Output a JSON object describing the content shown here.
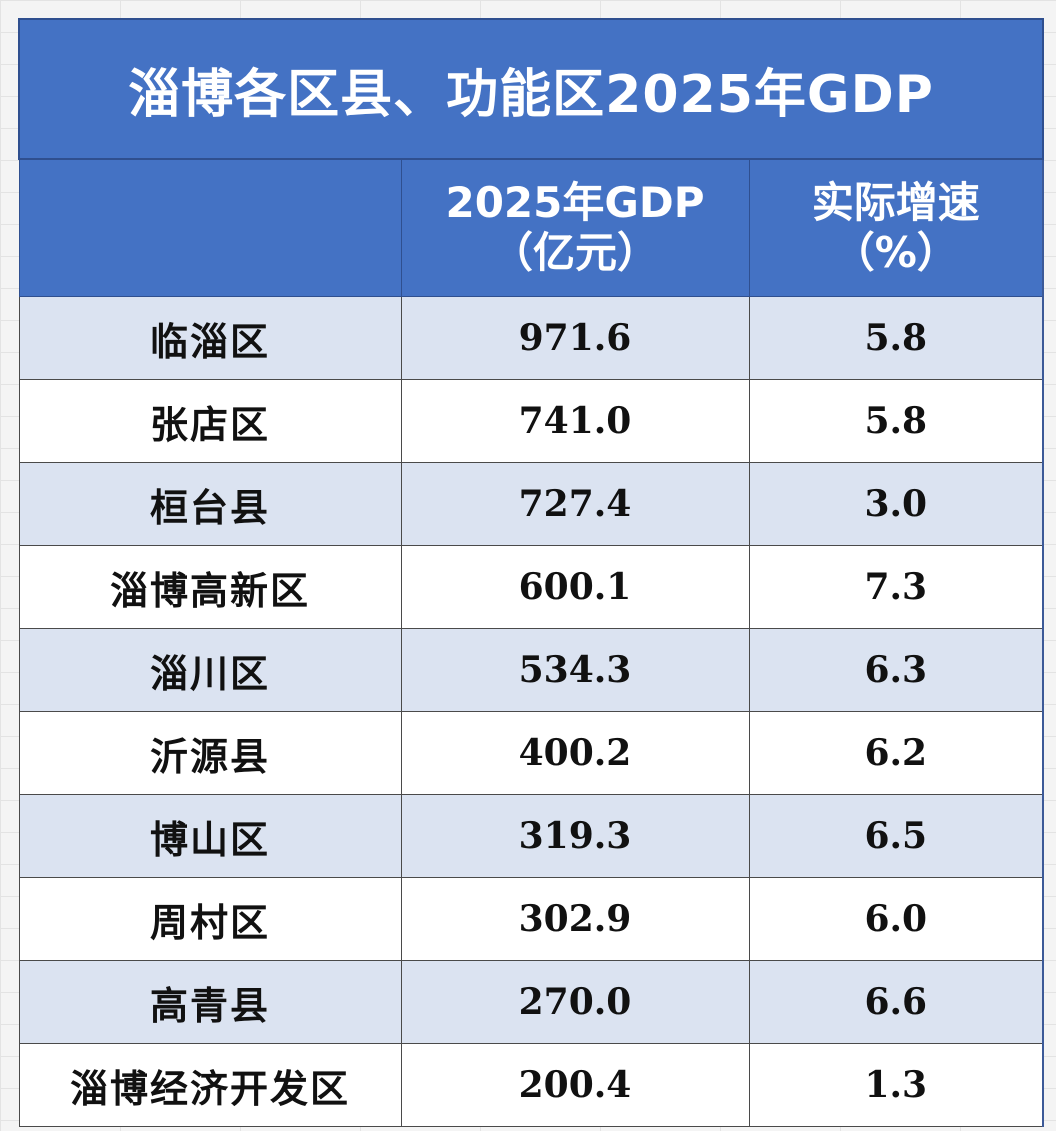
{
  "title": "淄博各区县、功能区2025年GDP",
  "headers": {
    "col1": "",
    "col2_line1": "2025年GDP",
    "col2_line2": "（亿元）",
    "col3_line1": "实际增速",
    "col3_line2": "（%）"
  },
  "rows": [
    {
      "name": "临淄区",
      "gdp": "971.6",
      "growth": "5.8"
    },
    {
      "name": "张店区",
      "gdp": "741.0",
      "growth": "5.8"
    },
    {
      "name": "桓台县",
      "gdp": "727.4",
      "growth": "3.0"
    },
    {
      "name": "淄博高新区",
      "gdp": "600.1",
      "growth": "7.3"
    },
    {
      "name": "淄川区",
      "gdp": "534.3",
      "growth": "6.3"
    },
    {
      "name": "沂源县",
      "gdp": "400.2",
      "growth": "6.2"
    },
    {
      "name": "博山区",
      "gdp": "319.3",
      "growth": "6.5"
    },
    {
      "name": "周村区",
      "gdp": "302.9",
      "growth": "6.0"
    },
    {
      "name": "高青县",
      "gdp": "270.0",
      "growth": "6.6"
    },
    {
      "name": "淄博经济开发区",
      "gdp": "200.4",
      "growth": "1.3"
    }
  ],
  "colors": {
    "header_bg": "#4472c4",
    "band_bg": "#dbe3f1",
    "plain_bg": "#ffffff"
  }
}
